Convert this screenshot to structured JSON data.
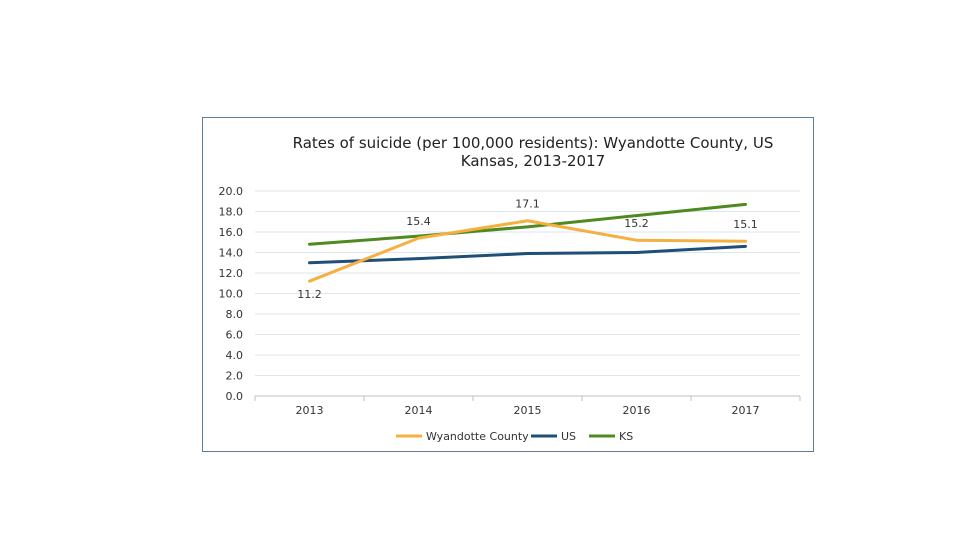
{
  "chart_data": {
    "type": "line",
    "title_lines": [
      "Rates of suicide (per 100,000 residents): Wyandotte County, US",
      "Kansas, 2013-2017"
    ],
    "categories": [
      "2013",
      "2014",
      "2015",
      "2016",
      "2017"
    ],
    "ylim": [
      0,
      20
    ],
    "y_ticks": [
      "0.0",
      "2.0",
      "4.0",
      "6.0",
      "8.0",
      "10.0",
      "12.0",
      "14.0",
      "16.0",
      "18.0",
      "20.0"
    ],
    "grid": true,
    "legend_position": "bottom",
    "series": [
      {
        "name": "Wyandotte County",
        "color": "#f5b041",
        "values": [
          11.2,
          15.4,
          17.1,
          15.2,
          15.1
        ],
        "labels": [
          "11.2",
          "15.4",
          "17.1",
          "15.2",
          "15.1"
        ]
      },
      {
        "name": "US",
        "color": "#1f4e79",
        "values": [
          13.0,
          13.4,
          13.9,
          14.0,
          14.6
        ]
      },
      {
        "name": "KS",
        "color": "#4e8a1e",
        "values": [
          14.8,
          15.6,
          16.5,
          17.6,
          18.7
        ]
      }
    ]
  }
}
